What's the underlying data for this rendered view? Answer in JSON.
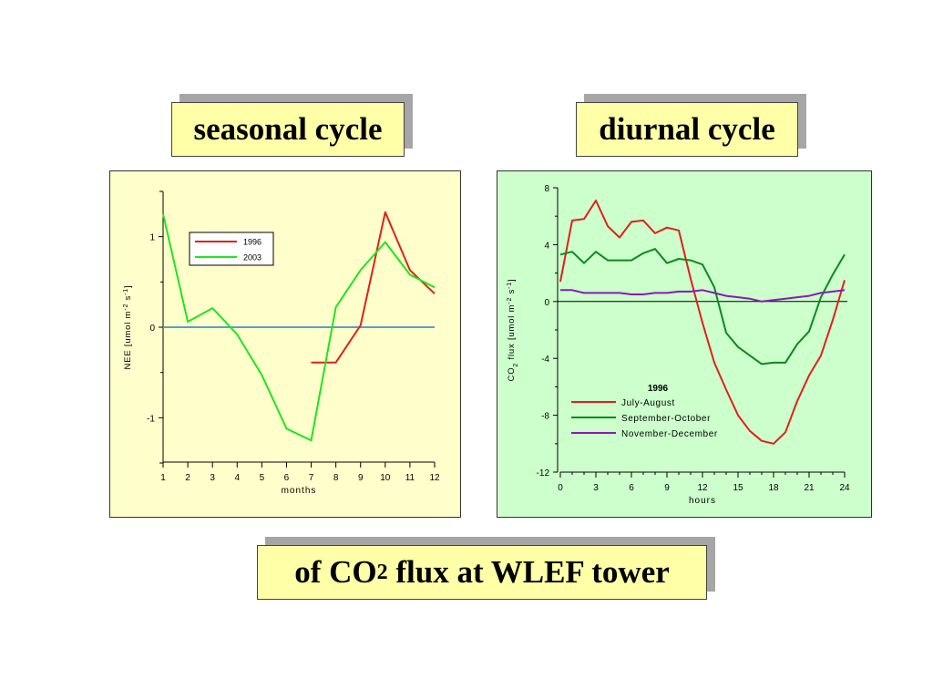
{
  "titles": {
    "seasonal": "seasonal cycle",
    "diurnal": "diurnal cycle",
    "bottom_pre": "of CO",
    "bottom_sub": "2",
    "bottom_post": " flux at WLEF tower"
  },
  "colors": {
    "title_box": "#ffffa8",
    "left_panel": "#ffffcc",
    "right_panel": "#ccffcc",
    "zero_line_left": "#5b9bd5"
  },
  "chart_data": [
    {
      "type": "line",
      "x_ticks": [
        1,
        2,
        3,
        4,
        5,
        6,
        7,
        8,
        9,
        10,
        11,
        12
      ],
      "xlim": [
        1,
        12
      ],
      "ylim": [
        -1.5,
        1.5
      ],
      "y_ticks": [
        -1,
        0,
        1
      ],
      "y_tick_labels": [
        "-1",
        "0",
        "1"
      ],
      "xlabel": "months",
      "ylabel_pre": "NEE [umol m",
      "ylabel_sup1": "-2",
      "ylabel_mid": " s",
      "ylabel_sup2": "-1",
      "ylabel_post": "]",
      "legend_position": "top-left",
      "grid": false,
      "series": [
        {
          "name": "1996",
          "color": "#e0201b",
          "x": [
            7,
            8,
            9,
            10,
            11,
            12
          ],
          "values": [
            -0.39,
            -0.39,
            0.02,
            1.27,
            0.63,
            0.37
          ]
        },
        {
          "name": "2003",
          "color": "#1ee61e",
          "x": [
            1,
            2,
            3,
            4,
            5,
            6,
            7,
            8,
            9,
            10,
            11,
            12
          ],
          "values": [
            1.25,
            0.06,
            0.21,
            -0.08,
            -0.53,
            -1.12,
            -1.25,
            0.22,
            0.63,
            0.94,
            0.58,
            0.44
          ]
        }
      ]
    },
    {
      "type": "line",
      "x_ticks": [
        0,
        3,
        6,
        9,
        12,
        15,
        18,
        21,
        24
      ],
      "xlim": [
        0,
        24
      ],
      "ylim": [
        -12,
        8
      ],
      "y_ticks": [
        -12,
        -8,
        -4,
        0,
        4,
        8
      ],
      "xlabel": "hours",
      "ylabel_pre": "CO",
      "ylabel_sub": "2",
      "ylabel_mid": " flux [umol m",
      "ylabel_sup1": "-2",
      "ylabel_mid2": " s",
      "ylabel_sup2": "-1",
      "ylabel_post": "]",
      "legend_title": "1996",
      "legend_position": "bottom-left",
      "grid": false,
      "series": [
        {
          "name": "July-August",
          "color": "#e0201b",
          "x": [
            0,
            1,
            2,
            3,
            4,
            5,
            6,
            7,
            8,
            9,
            10,
            11,
            12,
            13,
            14,
            15,
            16,
            17,
            18,
            19,
            20,
            21,
            22,
            23,
            24
          ],
          "values": [
            1.4,
            5.7,
            5.8,
            7.1,
            5.3,
            4.5,
            5.6,
            5.7,
            4.8,
            5.2,
            5.0,
            1.6,
            -1.5,
            -4.3,
            -6.2,
            -8.0,
            -9.1,
            -9.8,
            -10.0,
            -9.2,
            -7.0,
            -5.2,
            -3.8,
            -1.3,
            1.5
          ]
        },
        {
          "name": "September-October",
          "color": "#0a8a1a",
          "x": [
            0,
            1,
            2,
            3,
            4,
            5,
            6,
            7,
            8,
            9,
            10,
            11,
            12,
            13,
            14,
            15,
            16,
            17,
            18,
            19,
            20,
            21,
            22,
            23,
            24
          ],
          "values": [
            3.3,
            3.5,
            2.7,
            3.5,
            2.9,
            2.9,
            2.9,
            3.4,
            3.7,
            2.7,
            3.0,
            2.9,
            2.6,
            1.0,
            -2.2,
            -3.2,
            -3.8,
            -4.4,
            -4.3,
            -4.3,
            -3.0,
            -2.1,
            0.3,
            1.9,
            3.3
          ]
        },
        {
          "name": "November-December",
          "color": "#8a1ab8",
          "x": [
            0,
            1,
            2,
            3,
            4,
            5,
            6,
            7,
            8,
            9,
            10,
            11,
            12,
            13,
            14,
            15,
            16,
            17,
            18,
            19,
            20,
            21,
            22,
            23,
            24
          ],
          "values": [
            0.8,
            0.8,
            0.6,
            0.6,
            0.6,
            0.6,
            0.5,
            0.5,
            0.6,
            0.6,
            0.7,
            0.7,
            0.8,
            0.6,
            0.4,
            0.3,
            0.2,
            0.0,
            0.1,
            0.2,
            0.3,
            0.4,
            0.6,
            0.7,
            0.8
          ]
        }
      ]
    }
  ]
}
